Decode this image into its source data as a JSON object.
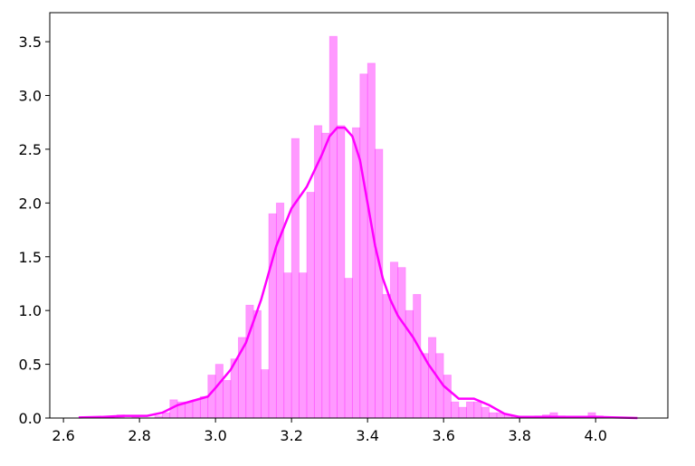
{
  "chart_data": {
    "type": "histogram",
    "bins": [
      2.74,
      2.76,
      2.78,
      2.8,
      2.82,
      2.84,
      2.86,
      2.88,
      2.9,
      2.92,
      2.94,
      2.96,
      2.98,
      3.0,
      3.02,
      3.04,
      3.06,
      3.08,
      3.1,
      3.12,
      3.14,
      3.16,
      3.18,
      3.2,
      3.22,
      3.24,
      3.26,
      3.28,
      3.3,
      3.32,
      3.34,
      3.36,
      3.38,
      3.4,
      3.42,
      3.44,
      3.46,
      3.48,
      3.5,
      3.52,
      3.54,
      3.56,
      3.58,
      3.6,
      3.62,
      3.64,
      3.66,
      3.68,
      3.7,
      3.72,
      3.74,
      3.76,
      3.78,
      3.8,
      3.82,
      3.84,
      3.86,
      3.88,
      3.9,
      3.92,
      3.94,
      3.96,
      3.98,
      4.0,
      4.02
    ],
    "values": [
      0.03,
      0,
      0.02,
      0,
      0,
      0.02,
      0.05,
      0.17,
      0.15,
      0.15,
      0.17,
      0.2,
      0.4,
      0.5,
      0.35,
      0.55,
      0.75,
      1.05,
      1.0,
      0.45,
      1.9,
      2.0,
      1.35,
      2.6,
      1.35,
      2.1,
      2.72,
      2.65,
      3.55,
      2.72,
      1.3,
      2.7,
      3.2,
      3.3,
      2.5,
      1.15,
      1.45,
      1.4,
      1.0,
      1.15,
      0.6,
      0.75,
      0.6,
      0.4,
      0.15,
      0.1,
      0.15,
      0.15,
      0.1,
      0.05,
      0.05,
      0.03,
      0.02,
      0,
      0,
      0.02,
      0.03,
      0.05,
      0.02,
      0,
      0,
      0,
      0.05,
      0.02
    ],
    "color": "#ff00ff",
    "kde": {
      "color": "#ff00ff",
      "x": [
        2.64,
        2.7,
        2.76,
        2.82,
        2.86,
        2.9,
        2.94,
        2.98,
        3.0,
        3.04,
        3.08,
        3.12,
        3.16,
        3.2,
        3.24,
        3.28,
        3.3,
        3.32,
        3.34,
        3.36,
        3.38,
        3.4,
        3.42,
        3.44,
        3.46,
        3.48,
        3.52,
        3.56,
        3.6,
        3.64,
        3.68,
        3.72,
        3.76,
        3.8,
        3.86,
        3.92,
        4.0,
        4.11
      ],
      "y": [
        0.005,
        0.01,
        0.02,
        0.02,
        0.05,
        0.12,
        0.16,
        0.2,
        0.28,
        0.45,
        0.7,
        1.1,
        1.6,
        1.95,
        2.15,
        2.45,
        2.62,
        2.7,
        2.7,
        2.62,
        2.4,
        2.0,
        1.6,
        1.3,
        1.1,
        0.95,
        0.75,
        0.5,
        0.3,
        0.18,
        0.18,
        0.12,
        0.04,
        0.01,
        0.01,
        0.01,
        0.01,
        0.0
      ]
    },
    "xlim": [
      2.564,
      4.19
    ],
    "ylim": [
      0,
      3.77
    ],
    "xticks": [
      2.6,
      2.8,
      {
        "value": 3,
        "label": "3.0"
      },
      3.2,
      3.4,
      3.6,
      3.8,
      {
        "value": 4,
        "label": "4.0"
      }
    ],
    "yticks": [
      {
        "value": 0,
        "label": "0.0"
      },
      0.5,
      {
        "value": 1,
        "label": "1.0"
      },
      1.5,
      {
        "value": 2,
        "label": "2.0"
      },
      2.5,
      {
        "value": 3,
        "label": "3.0"
      },
      3.5
    ]
  }
}
